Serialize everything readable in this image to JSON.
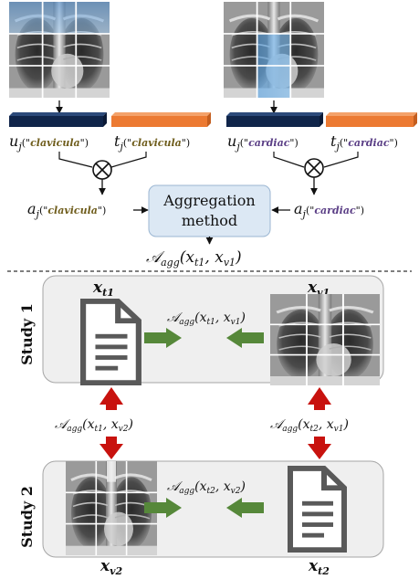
{
  "top": {
    "left_branch": {
      "u_prefix": "u",
      "u_sub": "j",
      "t_prefix": "t",
      "t_sub": "j",
      "paren_open": "(\"",
      "paren_close": "\")",
      "concept": "clavicula",
      "a_prefix": "a",
      "a_sub": "j"
    },
    "right_branch": {
      "u_prefix": "u",
      "u_sub": "j",
      "t_prefix": "t",
      "t_sub": "j",
      "paren_open": "(\"",
      "paren_close": "\")",
      "concept": "cardiac",
      "a_prefix": "a",
      "a_sub": "j"
    },
    "aggregation": {
      "line1": "Aggregation",
      "line2": "method"
    },
    "agg_output": {
      "symbol": "𝒜",
      "sub": "agg",
      "args": "(x",
      "a1": "t1",
      "comma": ", x",
      "a2": "v1",
      "close": ")"
    }
  },
  "studies": {
    "study1": {
      "label": "Study 1",
      "text_item": {
        "base": "x",
        "sub": "t1"
      },
      "image_item": {
        "base": "x",
        "sub": "v1"
      },
      "agg": {
        "symbol": "𝒜",
        "sub": "agg",
        "open": "(x",
        "a1": "t1",
        "mid": ", x",
        "a2": "v1",
        "close": ")"
      }
    },
    "study2": {
      "label": "Study 2",
      "text_item": {
        "base": "x",
        "sub": "t2"
      },
      "image_item": {
        "base": "x",
        "sub": "v2"
      },
      "agg": {
        "symbol": "𝒜",
        "sub": "agg",
        "open": "(x",
        "a1": "t2",
        "mid": ", x",
        "a2": "v2",
        "close": ")"
      }
    },
    "cross_left": {
      "symbol": "𝒜",
      "sub": "agg",
      "open": "(x",
      "a1": "t1",
      "mid": ", x",
      "a2": "v2",
      "close": ")"
    },
    "cross_right": {
      "symbol": "𝒜",
      "sub": "agg",
      "open": "(x",
      "a1": "t2",
      "mid": ", x",
      "a2": "v1",
      "close": ")"
    }
  },
  "colors": {
    "navy_bar": "#10254a",
    "orange_bar": "#ec7a32",
    "clavicula_text": "#6f5d1c",
    "cardiac_text": "#5b3f86",
    "agg_box": "#dce8f4",
    "study_panel": "#efefef",
    "green_arrow": "#56883a",
    "red_arrow": "#c8120e",
    "doc_icon": "#595959",
    "highlight_blue": "#6cb0ec"
  }
}
